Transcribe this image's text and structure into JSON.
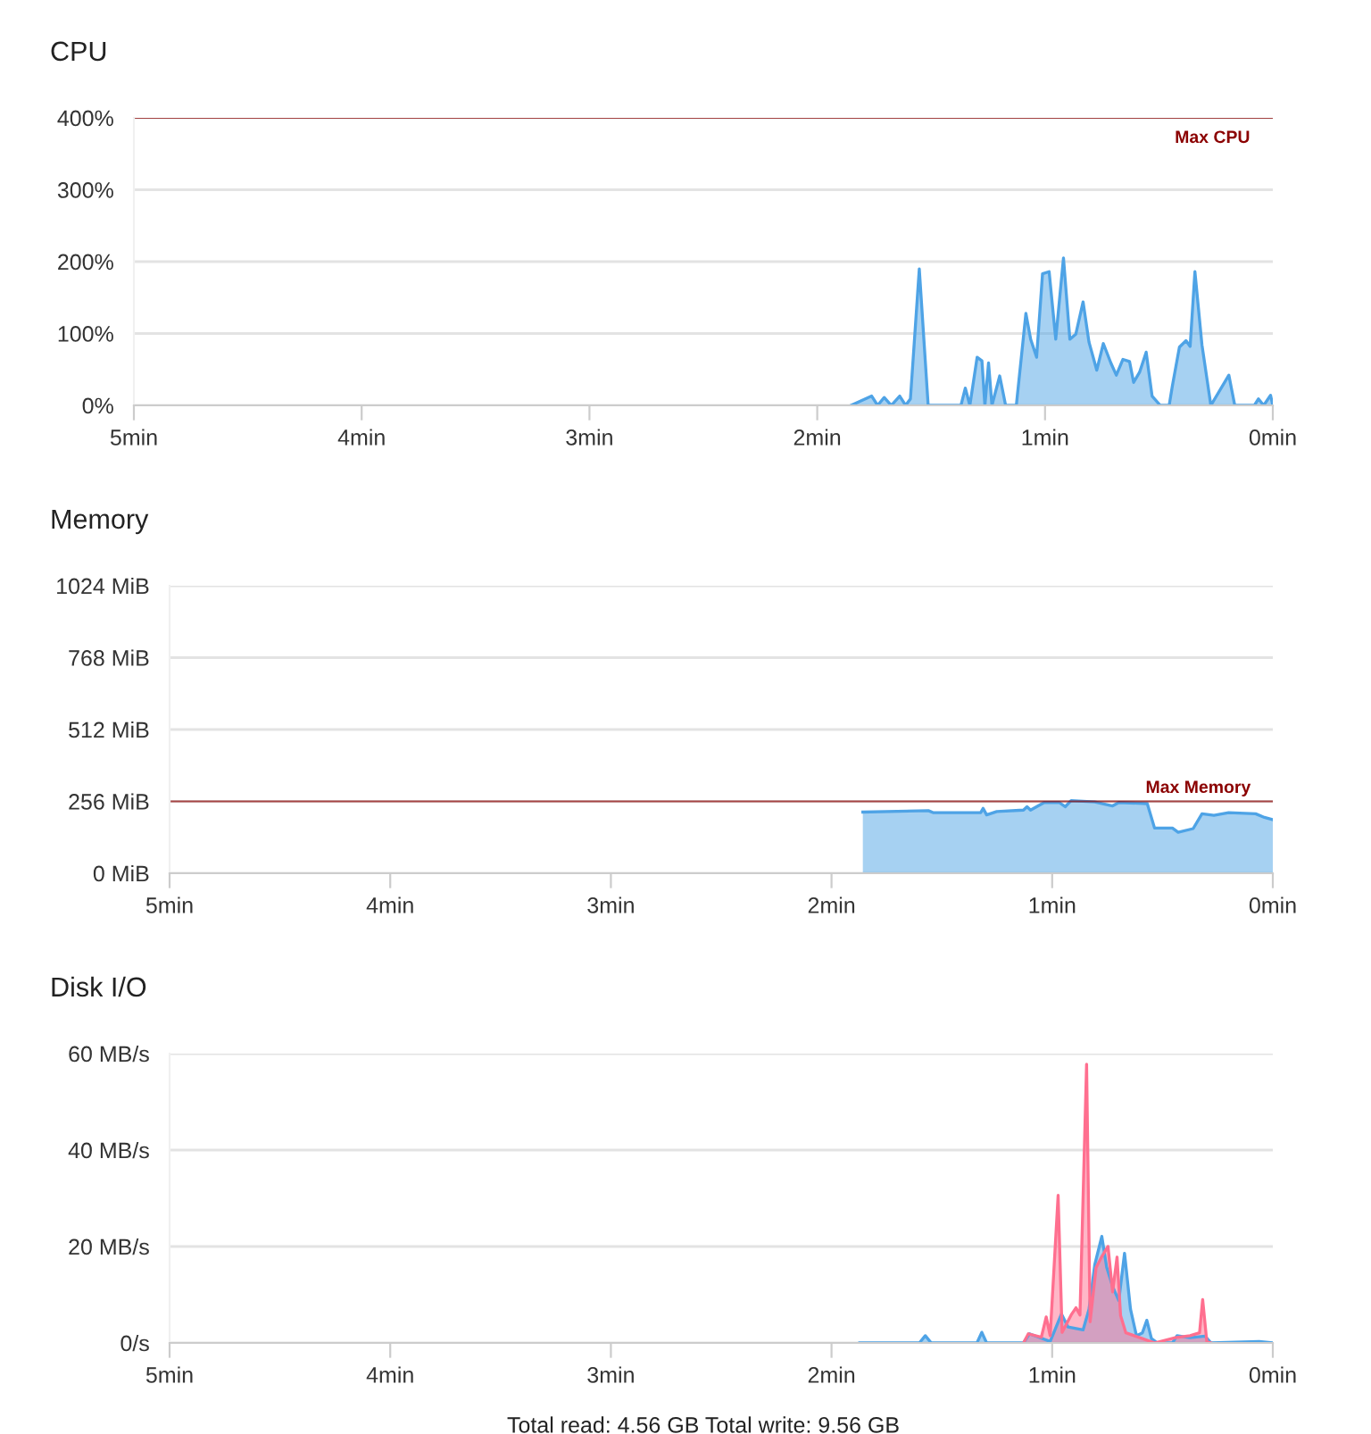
{
  "chart_data": [
    {
      "type": "area",
      "title": "CPU",
      "xlim": [
        5,
        0
      ],
      "xticks": [
        {
          "value": 5,
          "label": "5min"
        },
        {
          "value": 4,
          "label": "4min"
        },
        {
          "value": 3,
          "label": "3min"
        },
        {
          "value": 2,
          "label": "2min"
        },
        {
          "value": 1,
          "label": "1min"
        },
        {
          "value": 0,
          "label": "0min"
        }
      ],
      "ylim": [
        0,
        400
      ],
      "yticks": [
        {
          "value": 0,
          "label": "0%"
        },
        {
          "value": 100,
          "label": "100%"
        },
        {
          "value": 200,
          "label": "200%"
        },
        {
          "value": 300,
          "label": "300%"
        },
        {
          "value": 400,
          "label": "400%"
        }
      ],
      "grid": "y",
      "series": [
        {
          "color": "#4ea3e6",
          "x": [
            1.852,
            1.761,
            1.735,
            1.706,
            1.675,
            1.638,
            1.612,
            1.591,
            1.552,
            1.513,
            1.369,
            1.35,
            1.33,
            1.298,
            1.277,
            1.264,
            1.248,
            1.233,
            1.199,
            1.173,
            1.126,
            1.084,
            1.063,
            1.037,
            1.011,
            0.982,
            0.953,
            0.919,
            0.891,
            0.865,
            0.833,
            0.807,
            0.773,
            0.744,
            0.711,
            0.687,
            0.658,
            0.629,
            0.611,
            0.585,
            0.556,
            0.53,
            0.494,
            0.455,
            0.441,
            0.41,
            0.381,
            0.363,
            0.342,
            0.311,
            0.272,
            0.193,
            0.167,
            0.081,
            0.063,
            0.04,
            0.01,
            0
          ],
          "values": [
            0,
            13,
            0,
            11,
            0,
            13,
            0,
            9,
            190,
            0,
            0,
            24,
            0,
            67,
            62,
            0,
            59,
            0,
            41,
            0,
            0,
            128,
            92,
            67,
            183,
            186,
            92,
            205,
            92,
            99,
            144,
            88,
            49,
            86,
            59,
            42,
            64,
            61,
            32,
            46,
            74,
            13,
            0,
            0,
            27,
            81,
            90,
            82,
            186,
            84,
            0,
            42,
            0,
            0,
            9,
            0,
            14,
            0
          ]
        }
      ],
      "ref_lines": [
        {
          "axis": "y",
          "value": 400,
          "label": "Max CPU",
          "color": "#8b0000"
        }
      ]
    },
    {
      "type": "area",
      "title": "Memory",
      "xlim": [
        5,
        0
      ],
      "xticks": [
        {
          "value": 5,
          "label": "5min"
        },
        {
          "value": 4,
          "label": "4min"
        },
        {
          "value": 3,
          "label": "3min"
        },
        {
          "value": 2,
          "label": "2min"
        },
        {
          "value": 1,
          "label": "1min"
        },
        {
          "value": 0,
          "label": "0min"
        }
      ],
      "ylim": [
        0,
        1024
      ],
      "yticks": [
        {
          "value": 0,
          "label": "0 MiB"
        },
        {
          "value": 256,
          "label": "256 MiB"
        },
        {
          "value": 512,
          "label": "512 MiB"
        },
        {
          "value": 768,
          "label": "768 MiB"
        },
        {
          "value": 1024,
          "label": "1024 MiB"
        }
      ],
      "grid": "y",
      "series": [
        {
          "color": "#4ea3e6",
          "x": [
            1.858,
            1.561,
            1.54,
            1.324,
            1.313,
            1.297,
            1.251,
            1.13,
            1.114,
            1.098,
            1.036,
            0.968,
            0.941,
            0.914,
            0.807,
            0.726,
            0.698,
            0.569,
            0.536,
            0.455,
            0.429,
            0.361,
            0.321,
            0.267,
            0.2,
            0.078,
            0.038,
            0
          ],
          "values": [
            218,
            223,
            216,
            216,
            231,
            208,
            220,
            225,
            237,
            225,
            252,
            252,
            237,
            259,
            254,
            240,
            252,
            248,
            161,
            161,
            146,
            159,
            212,
            206,
            216,
            212,
            199,
            191
          ]
        }
      ],
      "ref_lines": [
        {
          "axis": "y",
          "value": 256,
          "label": "Max Memory",
          "color": "#8b0000"
        }
      ]
    },
    {
      "type": "area",
      "title": "Disk I/O",
      "xlim": [
        5,
        0
      ],
      "xticks": [
        {
          "value": 5,
          "label": "5min"
        },
        {
          "value": 4,
          "label": "4min"
        },
        {
          "value": 3,
          "label": "3min"
        },
        {
          "value": 2,
          "label": "2min"
        },
        {
          "value": 1,
          "label": "1min"
        },
        {
          "value": 0,
          "label": "0min"
        }
      ],
      "ylim": [
        0,
        60
      ],
      "yticks": [
        {
          "value": 0,
          "label": "0/s"
        },
        {
          "value": 20,
          "label": "20 MB/s"
        },
        {
          "value": 40,
          "label": "40 MB/s"
        },
        {
          "value": 60,
          "label": "60 MB/s"
        }
      ],
      "grid": "y",
      "series": [
        {
          "color": "#4ea3e6",
          "x": [
            1.872,
            1.602,
            1.575,
            1.548,
            1.341,
            1.319,
            1.297,
            1.13,
            1.103,
            1.062,
            1.009,
            0.958,
            0.928,
            0.86,
            0.833,
            0.807,
            0.775,
            0.753,
            0.726,
            0.698,
            0.672,
            0.645,
            0.618,
            0.591,
            0.571,
            0.55,
            0.523,
            0.455,
            0.434,
            0.375,
            0.307,
            0.28,
            0.062,
            0
          ],
          "values": [
            0,
            0,
            1.5,
            0,
            0,
            2.2,
            0,
            0,
            1.9,
            1.2,
            0.3,
            6.0,
            3.3,
            2.7,
            7.0,
            16.2,
            22.1,
            15.7,
            11.7,
            8.8,
            18.6,
            7.0,
            1.5,
            2.1,
            4.7,
            0.9,
            0,
            0,
            1.5,
            1.1,
            1.4,
            0,
            0.3,
            0
          ]
        },
        {
          "color": "#ff6f8f",
          "x": [
            1.13,
            1.108,
            1.049,
            1.027,
            1.009,
            0.973,
            0.955,
            0.914,
            0.892,
            0.874,
            0.844,
            0.828,
            0.801,
            0.774,
            0.747,
            0.726,
            0.706,
            0.69,
            0.666,
            0.591,
            0.536,
            0.442,
            0.375,
            0.332,
            0.318,
            0.299,
            0.281
          ],
          "values": [
            0,
            1.9,
            1.2,
            5.4,
            1.5,
            30.6,
            2.2,
            5.8,
            7.3,
            5.8,
            57.8,
            4.4,
            15.6,
            18.0,
            20.0,
            10.6,
            17.8,
            5.7,
            2.1,
            0.9,
            0,
            1.1,
            1.5,
            2.1,
            9.0,
            0.2,
            0
          ]
        }
      ],
      "annotations": [
        "Total read: 4.56 GB Total write: 9.56 GB"
      ]
    }
  ]
}
